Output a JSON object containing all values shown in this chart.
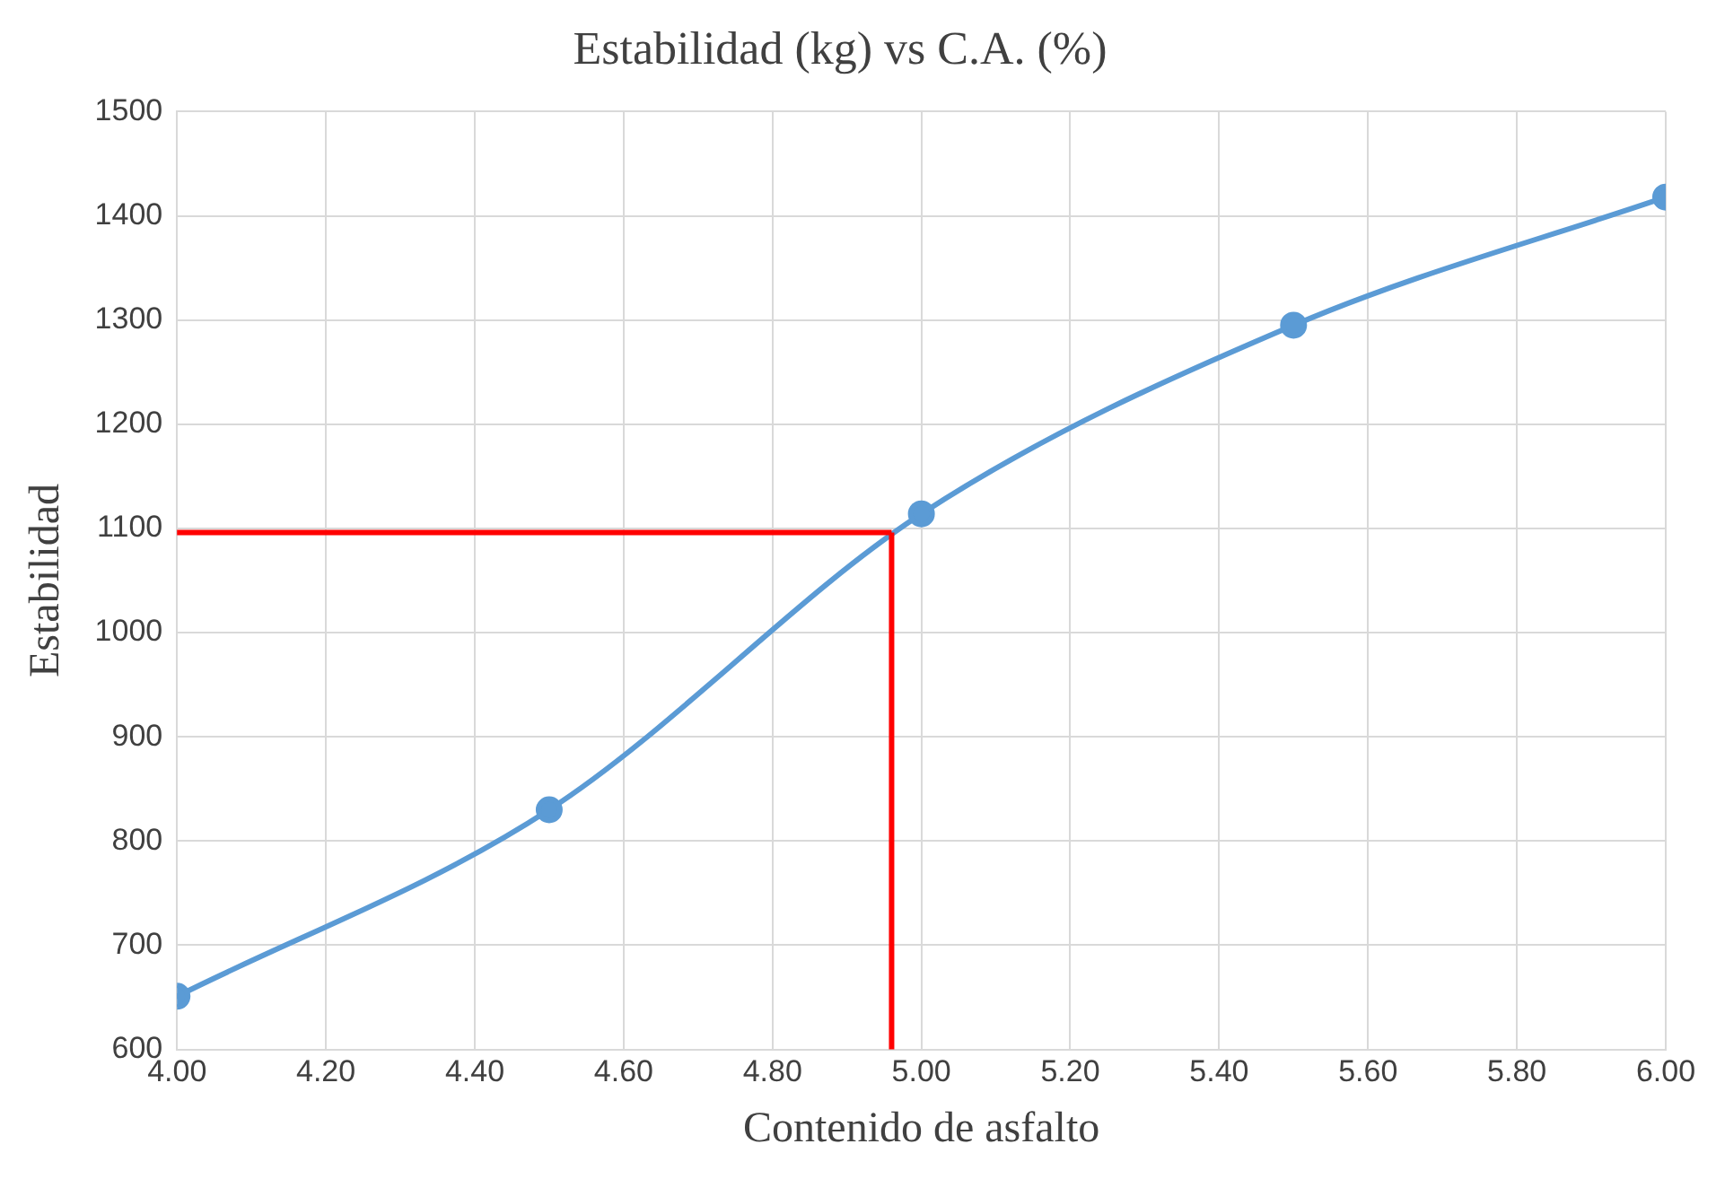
{
  "chart_data": {
    "type": "line",
    "title": "Estabilidad (kg) vs C.A. (%)",
    "xlabel": "Contenido de asfalto",
    "ylabel": "Estabilidad",
    "x": [
      4.0,
      4.5,
      5.0,
      5.5,
      6.0
    ],
    "series": [
      {
        "color": "#5b9bd5",
        "values": [
          651,
          830,
          1114,
          1295,
          1418
        ]
      }
    ],
    "xlim": [
      4,
      6
    ],
    "xticks": [
      {
        "value": 4,
        "label": "4.00"
      },
      {
        "value": 4.2,
        "label": "4.20"
      },
      {
        "value": 4.4,
        "label": "4.40"
      },
      {
        "value": 4.6,
        "label": "4.60"
      },
      {
        "value": 4.8,
        "label": "4.80"
      },
      {
        "value": 5,
        "label": "5.00"
      },
      {
        "value": 5.2,
        "label": "5.20"
      },
      {
        "value": 5.4,
        "label": "5.40"
      },
      {
        "value": 5.6,
        "label": "5.60"
      },
      {
        "value": 5.8,
        "label": "5.80"
      },
      {
        "value": 6,
        "label": "6.00"
      }
    ],
    "ylim": [
      600,
      1500
    ],
    "yticks": [
      600,
      700,
      800,
      900,
      1000,
      1100,
      1200,
      1300,
      1400,
      1500
    ],
    "ref_lines": [
      {
        "axis": "y",
        "value": 1096,
        "color": "#ff0000"
      },
      {
        "axis": "x",
        "value": 4.96,
        "color": "#ff0000"
      }
    ],
    "grid": true,
    "legend": false,
    "marker": "circle",
    "line_style": "solid"
  }
}
